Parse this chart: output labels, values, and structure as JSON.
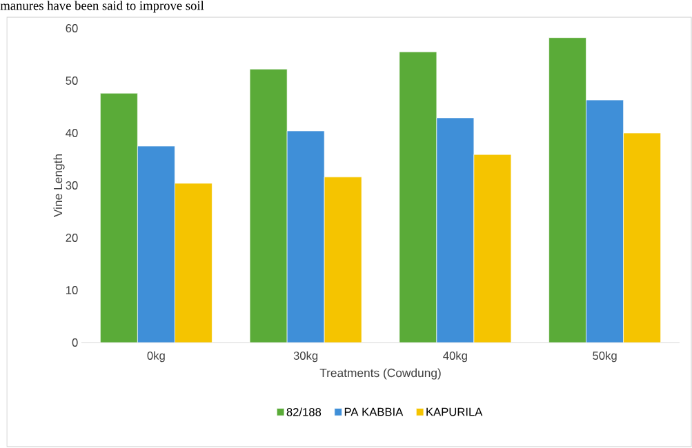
{
  "chart_data": {
    "type": "bar",
    "xlabel": "Treatments (Cowdung)",
    "ylabel": "Vine Length",
    "annotations": [
      "manures have been said to improve soil"
    ],
    "categories": [
      "0kg",
      "30kg",
      "40kg",
      "50kg"
    ],
    "series": [
      {
        "name": "82/188",
        "color": "#5aab38",
        "values": [
          47.6,
          52.2,
          55.5,
          58.2
        ]
      },
      {
        "name": "PA KABBIA",
        "color": "#3f8fd8",
        "values": [
          37.5,
          40.4,
          42.9,
          46.3
        ]
      },
      {
        "name": "KAPURILA",
        "color": "#f5c400",
        "values": [
          30.4,
          31.6,
          35.9,
          40.0
        ]
      }
    ],
    "ylim": [
      0,
      60
    ],
    "yticks": [
      0,
      10,
      20,
      30,
      40,
      50,
      60
    ],
    "grid": false,
    "legend": "bottom"
  }
}
